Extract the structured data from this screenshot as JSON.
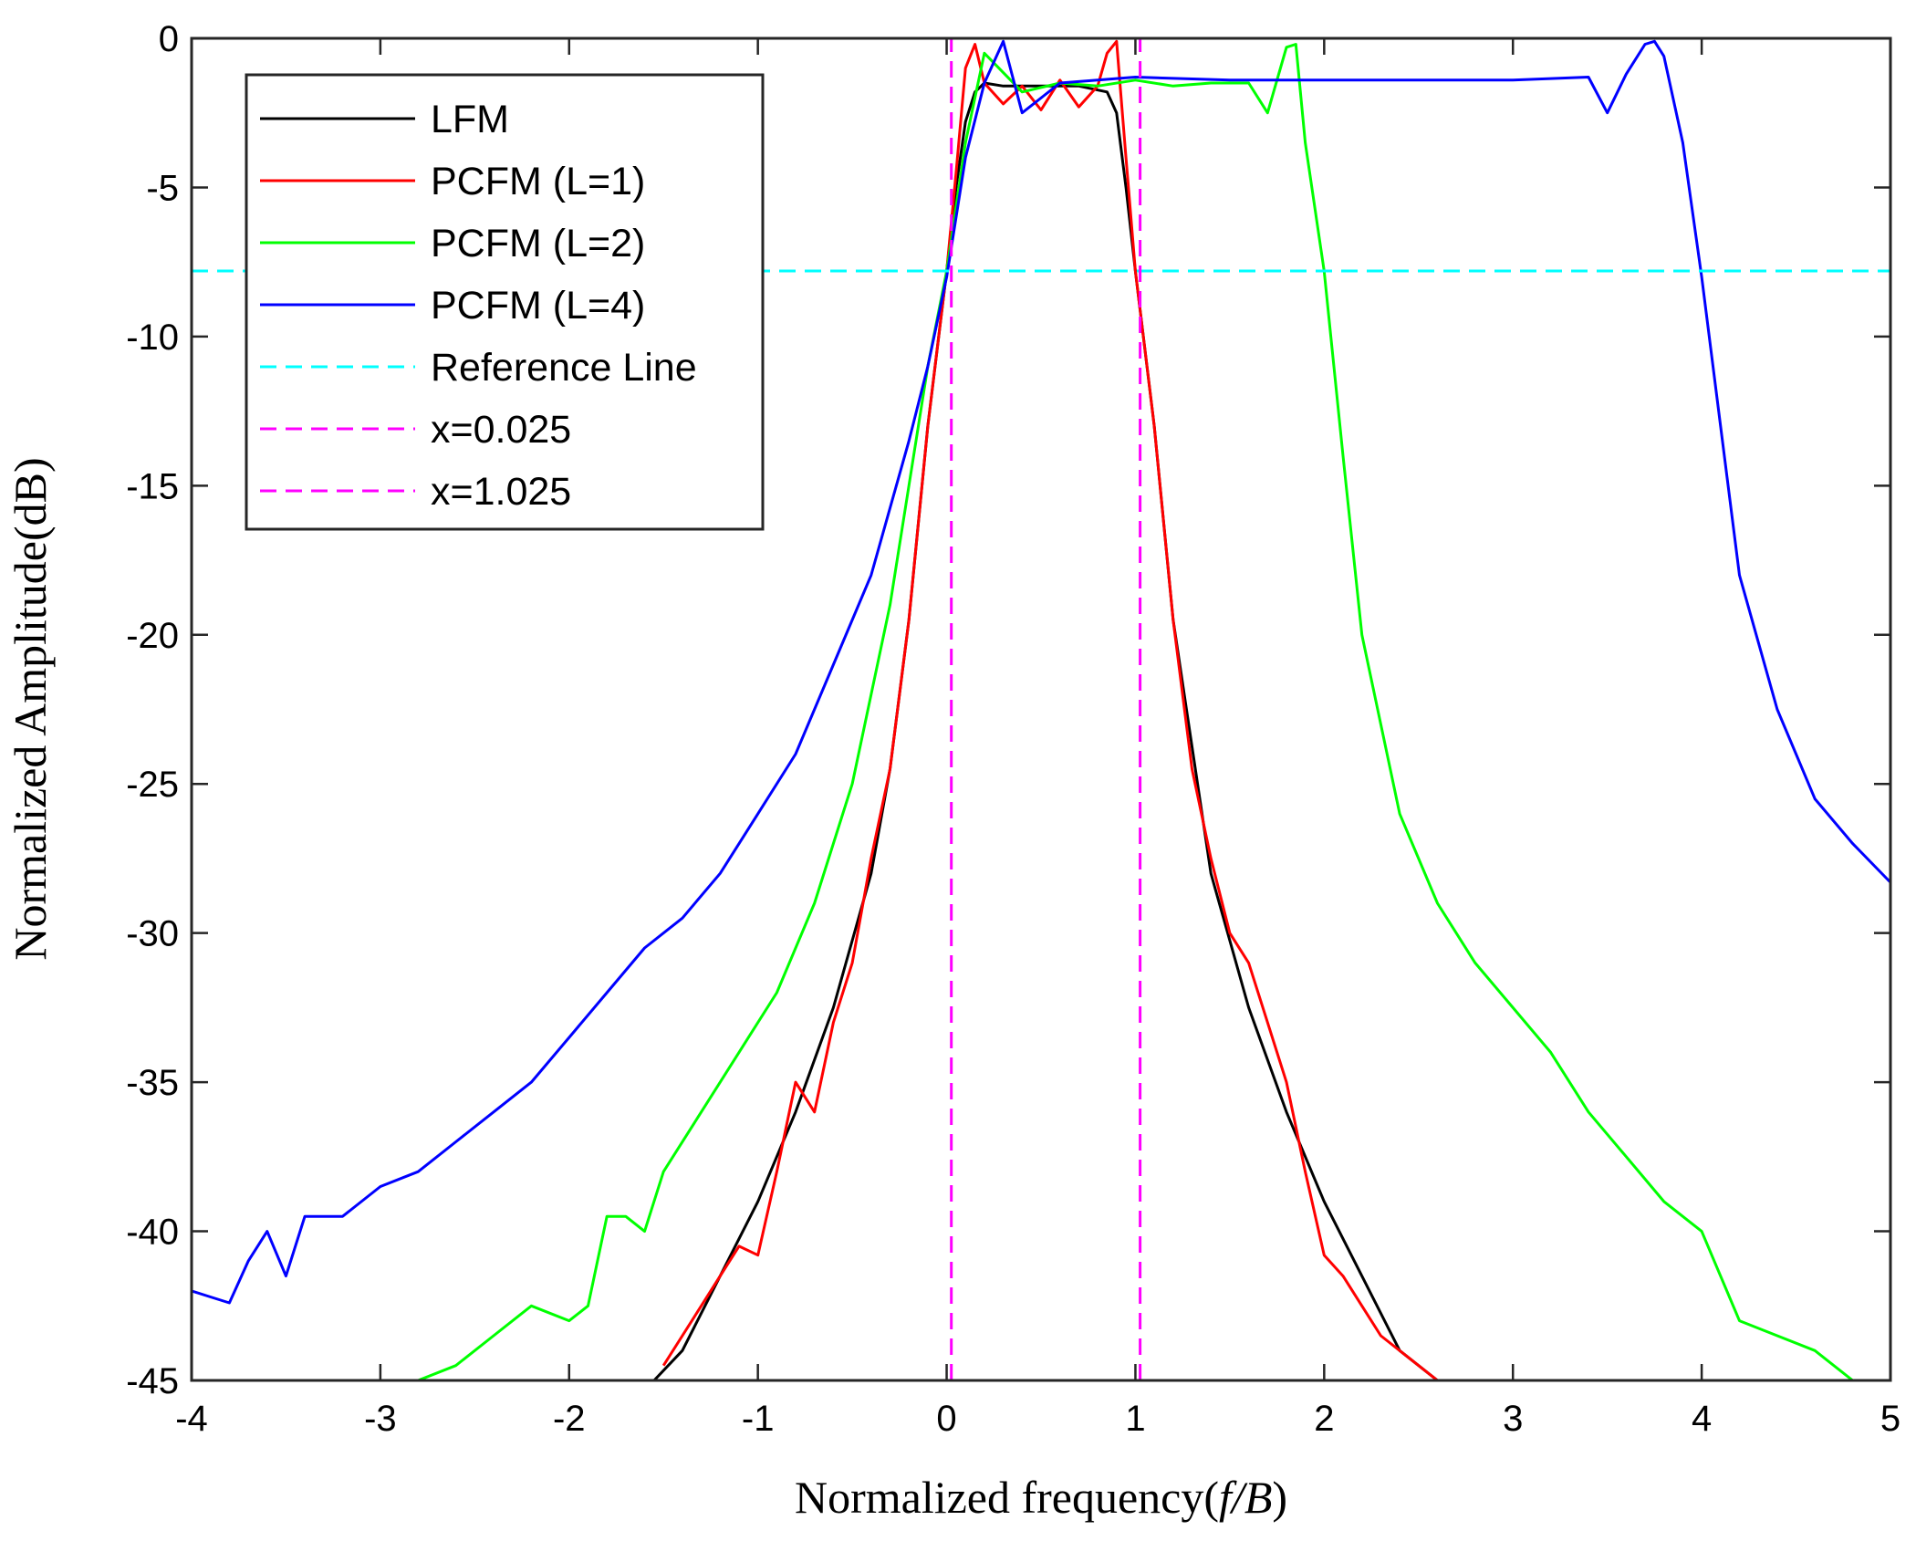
{
  "chart_data": {
    "type": "line",
    "title": "",
    "xlabel": "Normalized frequency(f/B)",
    "ylabel": "Normalized Amplitude(dB)",
    "xlim": [
      -4,
      5
    ],
    "ylim": [
      -45,
      0
    ],
    "xticks": [
      -4,
      -3,
      -2,
      -1,
      0,
      1,
      2,
      3,
      4,
      5
    ],
    "yticks": [
      0,
      -5,
      -10,
      -15,
      -20,
      -25,
      -30,
      -35,
      -40,
      -45
    ],
    "grid": false,
    "legend_position": "top-left",
    "series": [
      {
        "name": "LFM",
        "color": "#000000",
        "style": "solid",
        "x": [
          -1.55,
          -1.4,
          -1.2,
          -1.0,
          -0.8,
          -0.6,
          -0.4,
          -0.3,
          -0.2,
          -0.1,
          0.0,
          0.05,
          0.1,
          0.15,
          0.2,
          0.3,
          0.5,
          0.7,
          0.85,
          0.9,
          0.95,
          1.0,
          1.1,
          1.2,
          1.4,
          1.6,
          1.8,
          2.0,
          2.2,
          2.4,
          2.6
        ],
        "y": [
          -45,
          -44,
          -41.5,
          -39,
          -36,
          -32.5,
          -28,
          -24.5,
          -19.5,
          -13,
          -7.8,
          -5,
          -2.8,
          -1.8,
          -1.5,
          -1.6,
          -1.6,
          -1.6,
          -1.8,
          -2.5,
          -5,
          -7.8,
          -13,
          -19.5,
          -28,
          -32.5,
          -36,
          -39,
          -41.5,
          -44,
          -45
        ]
      },
      {
        "name": "PCFM (L=1)",
        "color": "#ff0000",
        "style": "solid",
        "x": [
          -1.5,
          -1.4,
          -1.3,
          -1.2,
          -1.1,
          -1.0,
          -0.9,
          -0.8,
          -0.7,
          -0.6,
          -0.5,
          -0.4,
          -0.3,
          -0.2,
          -0.1,
          0.0,
          0.05,
          0.1,
          0.15,
          0.2,
          0.3,
          0.4,
          0.5,
          0.6,
          0.7,
          0.8,
          0.85,
          0.9,
          0.95,
          1.0,
          1.1,
          1.2,
          1.3,
          1.4,
          1.5,
          1.6,
          1.7,
          1.8,
          1.9,
          2.0,
          2.1,
          2.2,
          2.3,
          2.4,
          2.5,
          2.6
        ],
        "y": [
          -44.5,
          -43.5,
          -42.5,
          -41.5,
          -40.5,
          -40.8,
          -38,
          -35,
          -36,
          -33,
          -31,
          -27.5,
          -24.5,
          -19.5,
          -13,
          -7.8,
          -4.5,
          -1.0,
          -0.2,
          -1.5,
          -2.2,
          -1.6,
          -2.4,
          -1.4,
          -2.3,
          -1.6,
          -0.5,
          -0.1,
          -4.0,
          -7.8,
          -13,
          -19.5,
          -24.5,
          -27.5,
          -30,
          -31,
          -33,
          -35,
          -38,
          -40.8,
          -41.5,
          -42.5,
          -43.5,
          -44,
          -44.5,
          -45
        ]
      },
      {
        "name": "PCFM (L=2)",
        "color": "#00ff00",
        "style": "solid",
        "x": [
          -2.8,
          -2.6,
          -2.4,
          -2.2,
          -2.0,
          -1.9,
          -1.8,
          -1.7,
          -1.6,
          -1.5,
          -1.3,
          -1.1,
          -0.9,
          -0.7,
          -0.5,
          -0.3,
          -0.2,
          -0.1,
          0.0,
          0.1,
          0.2,
          0.4,
          0.6,
          0.8,
          1.0,
          1.2,
          1.4,
          1.6,
          1.7,
          1.8,
          1.85,
          1.9,
          2.0,
          2.1,
          2.2,
          2.4,
          2.6,
          2.8,
          3.0,
          3.2,
          3.4,
          3.6,
          3.8,
          4.0,
          4.2,
          4.4,
          4.6,
          4.8
        ],
        "y": [
          -45,
          -44.5,
          -43.5,
          -42.5,
          -43,
          -42.5,
          -39.5,
          -39.5,
          -40,
          -38,
          -36,
          -34,
          -32,
          -29,
          -25,
          -19,
          -15,
          -11,
          -7.8,
          -3.5,
          -0.5,
          -1.8,
          -1.5,
          -1.6,
          -1.4,
          -1.6,
          -1.5,
          -1.5,
          -2.5,
          -0.3,
          -0.2,
          -3.5,
          -7.8,
          -14,
          -20,
          -26,
          -29,
          -31,
          -32.5,
          -34,
          -36,
          -37.5,
          -39,
          -40,
          -43,
          -43.5,
          -44,
          -45
        ]
      },
      {
        "name": "PCFM (L=4)",
        "color": "#0000ff",
        "style": "solid",
        "x": [
          -4.0,
          -3.9,
          -3.8,
          -3.7,
          -3.6,
          -3.5,
          -3.4,
          -3.2,
          -3.0,
          -2.8,
          -2.6,
          -2.4,
          -2.2,
          -2.0,
          -1.8,
          -1.6,
          -1.4,
          -1.2,
          -1.0,
          -0.8,
          -0.6,
          -0.4,
          -0.2,
          -0.1,
          0.0,
          0.1,
          0.2,
          0.3,
          0.4,
          0.6,
          1.0,
          1.5,
          2.0,
          2.5,
          3.0,
          3.4,
          3.5,
          3.6,
          3.7,
          3.75,
          3.8,
          3.9,
          4.0,
          4.1,
          4.2,
          4.4,
          4.6,
          4.8,
          5.0
        ],
        "y": [
          -42,
          -42.2,
          -42.4,
          -41,
          -40,
          -41.5,
          -39.5,
          -39.5,
          -38.5,
          -38,
          -37,
          -36,
          -35,
          -33.5,
          -32,
          -30.5,
          -29.5,
          -28,
          -26,
          -24,
          -21,
          -18,
          -13.5,
          -11,
          -8.0,
          -4.0,
          -1.5,
          -0.1,
          -2.5,
          -1.5,
          -1.3,
          -1.4,
          -1.4,
          -1.4,
          -1.4,
          -1.3,
          -2.5,
          -1.2,
          -0.2,
          -0.1,
          -0.6,
          -3.5,
          -8.0,
          -13,
          -18,
          -22.5,
          -25.5,
          -27,
          -28.3
        ]
      },
      {
        "name": "Reference Line",
        "color": "#00ffff",
        "style": "dashed",
        "x": [
          -4,
          5
        ],
        "y": [
          -7.8,
          -7.8
        ]
      },
      {
        "name": "x=0.025",
        "color": "#ff00ff",
        "style": "dashed",
        "x": [
          0.025,
          0.025
        ],
        "y": [
          -45,
          0
        ]
      },
      {
        "name": "x=1.025",
        "color": "#ff00ff",
        "style": "dashed",
        "x": [
          1.025,
          1.025
        ],
        "y": [
          -45,
          0
        ]
      }
    ]
  }
}
